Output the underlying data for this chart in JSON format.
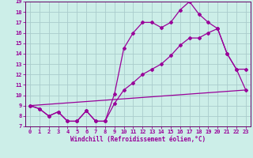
{
  "xlabel": "Windchill (Refroidissement éolien,°C)",
  "bg_color": "#cceee8",
  "grid_color": "#aacccc",
  "line_color": "#990099",
  "spine_color": "#660066",
  "xlim": [
    -0.5,
    23.5
  ],
  "ylim": [
    7,
    19
  ],
  "xticks": [
    0,
    1,
    2,
    3,
    4,
    5,
    6,
    7,
    8,
    9,
    10,
    11,
    12,
    13,
    14,
    15,
    16,
    17,
    18,
    19,
    20,
    21,
    22,
    23
  ],
  "yticks": [
    7,
    8,
    9,
    10,
    11,
    12,
    13,
    14,
    15,
    16,
    17,
    18,
    19
  ],
  "series1_x": [
    0,
    1,
    2,
    3,
    4,
    5,
    6,
    7,
    8,
    9,
    10,
    11,
    12,
    13,
    14,
    15,
    16,
    17,
    18,
    19,
    20,
    21,
    22,
    23
  ],
  "series1_y": [
    9.0,
    8.7,
    8.0,
    8.4,
    7.5,
    7.5,
    8.5,
    7.5,
    7.5,
    10.1,
    14.5,
    16.0,
    17.0,
    17.0,
    16.5,
    17.0,
    18.2,
    19.0,
    17.8,
    17.0,
    16.4,
    14.0,
    12.5,
    12.5
  ],
  "series2_x": [
    0,
    1,
    2,
    3,
    4,
    5,
    6,
    7,
    8,
    9,
    10,
    11,
    12,
    13,
    14,
    15,
    16,
    17,
    18,
    19,
    20,
    21,
    22,
    23
  ],
  "series2_y": [
    9.0,
    8.7,
    8.0,
    8.4,
    7.5,
    7.5,
    8.5,
    7.5,
    7.5,
    9.2,
    10.5,
    11.2,
    12.0,
    12.5,
    13.0,
    13.8,
    14.8,
    15.5,
    15.5,
    16.0,
    16.4,
    14.0,
    12.5,
    10.5
  ],
  "series3_x": [
    0,
    23
  ],
  "series3_y": [
    9.0,
    10.5
  ],
  "marker": "D",
  "markersize": 2.0,
  "linewidth": 0.9,
  "tick_fontsize": 5.0,
  "xlabel_fontsize": 5.5
}
